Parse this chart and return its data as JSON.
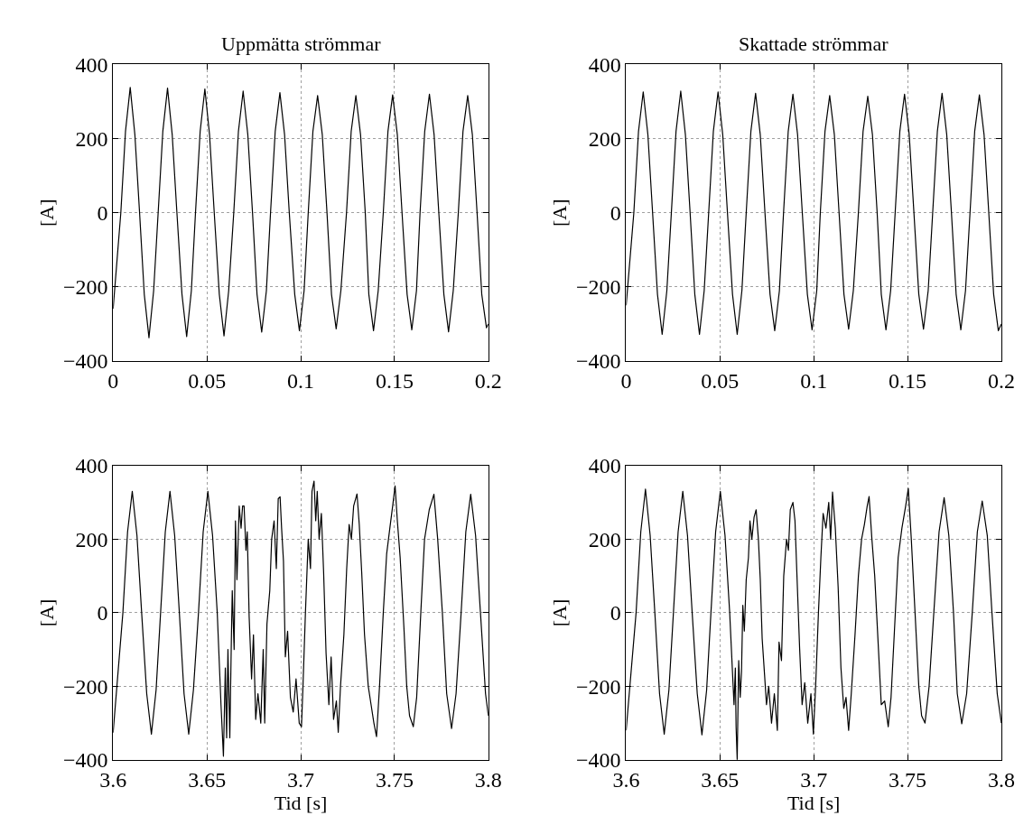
{
  "chart_data": [
    {
      "type": "line",
      "title": "Uppmätta strömmar",
      "ylabel": "[A]",
      "xlim": [
        0,
        0.2
      ],
      "xticks": [
        0,
        0.05,
        0.1,
        0.15,
        0.2
      ],
      "ylim": [
        -400,
        400
      ],
      "yticks": [
        -400,
        -200,
        0,
        200,
        400
      ],
      "grid": true,
      "line_style": "solid",
      "series": [
        {
          "color": "#000000",
          "x": [
            0,
            0.0041,
            0.0066,
            0.0091,
            0.0116,
            0.0141,
            0.0166,
            0.0191,
            0.0216,
            0.024,
            0.0265,
            0.029,
            0.0315,
            0.034,
            0.0367,
            0.0392,
            0.0417,
            0.0439,
            0.0464,
            0.0489,
            0.0514,
            0.0539,
            0.0566,
            0.0591,
            0.0616,
            0.0643,
            0.0668,
            0.0693,
            0.0718,
            0.0743,
            0.0767,
            0.0792,
            0.0817,
            0.0839,
            0.0864,
            0.0889,
            0.0914,
            0.0939,
            0.0968,
            0.0993,
            0.1018,
            0.104,
            0.1065,
            0.109,
            0.1115,
            0.114,
            0.1164,
            0.1189,
            0.1214,
            0.1244,
            0.1269,
            0.1294,
            0.1319,
            0.1344,
            0.1363,
            0.1388,
            0.1413,
            0.144,
            0.1465,
            0.149,
            0.1515,
            0.154,
            0.1567,
            0.1592,
            0.1617,
            0.1636,
            0.1661,
            0.1686,
            0.1711,
            0.1736,
            0.1763,
            0.1788,
            0.1813,
            0.184,
            0.1865,
            0.189,
            0.1915,
            0.194,
            0.1965,
            0.199,
            0.2
          ],
          "values": [
            -259,
            0,
            220,
            338,
            210,
            0,
            -220,
            -337,
            -210,
            0,
            220,
            336,
            210,
            0,
            -220,
            -334,
            -210,
            0,
            220,
            334,
            210,
            0,
            -220,
            -332,
            -210,
            0,
            220,
            328,
            210,
            0,
            -220,
            -322,
            -210,
            0,
            220,
            324,
            210,
            0,
            -220,
            -318,
            -210,
            0,
            220,
            316,
            210,
            0,
            -220,
            -313,
            -210,
            0,
            220,
            316,
            210,
            0,
            -220,
            -318,
            -210,
            0,
            220,
            318,
            210,
            0,
            -220,
            -316,
            -210,
            0,
            220,
            320,
            210,
            0,
            -220,
            -321,
            -210,
            0,
            220,
            316,
            210,
            0,
            -220,
            -310,
            -300
          ]
        }
      ]
    },
    {
      "type": "line",
      "title": "Skattade strömmar",
      "ylabel": "[A]",
      "xlim": [
        0,
        0.2
      ],
      "xticks": [
        0,
        0.05,
        0.1,
        0.15,
        0.2
      ],
      "ylim": [
        -400,
        400
      ],
      "yticks": [
        -400,
        -200,
        0,
        200,
        400
      ],
      "grid": true,
      "line_style": "solid",
      "series": [
        {
          "color": "#000000",
          "x": [
            0,
            0.0041,
            0.0066,
            0.0091,
            0.0116,
            0.0141,
            0.0167,
            0.0192,
            0.0217,
            0.0241,
            0.0266,
            0.0291,
            0.0316,
            0.0341,
            0.0366,
            0.0391,
            0.0416,
            0.044,
            0.0465,
            0.049,
            0.0515,
            0.054,
            0.0567,
            0.0592,
            0.0617,
            0.064,
            0.0665,
            0.069,
            0.0715,
            0.074,
            0.0767,
            0.0792,
            0.0817,
            0.0839,
            0.0864,
            0.0889,
            0.0914,
            0.0939,
            0.0966,
            0.0991,
            0.1016,
            0.1035,
            0.106,
            0.1085,
            0.111,
            0.1135,
            0.1161,
            0.1186,
            0.1211,
            0.1238,
            0.1263,
            0.1288,
            0.1313,
            0.1338,
            0.136,
            0.1385,
            0.141,
            0.1434,
            0.1459,
            0.1484,
            0.1509,
            0.1534,
            0.156,
            0.1585,
            0.161,
            0.1634,
            0.1659,
            0.1684,
            0.1709,
            0.1734,
            0.1759,
            0.1784,
            0.1809,
            0.1833,
            0.1858,
            0.1883,
            0.1908,
            0.1933,
            0.1959,
            0.1984,
            0.2
          ],
          "values": [
            -250,
            0,
            220,
            326,
            210,
            0,
            -220,
            -328,
            -210,
            0,
            220,
            328,
            210,
            0,
            -220,
            -328,
            -210,
            0,
            220,
            326,
            210,
            0,
            -220,
            -328,
            -210,
            0,
            220,
            322,
            210,
            0,
            -220,
            -318,
            -210,
            0,
            220,
            320,
            210,
            0,
            -220,
            -316,
            -210,
            0,
            220,
            316,
            210,
            0,
            -220,
            -314,
            -210,
            0,
            220,
            314,
            210,
            0,
            -220,
            -316,
            -210,
            0,
            220,
            320,
            210,
            0,
            -220,
            -314,
            -210,
            0,
            220,
            322,
            210,
            0,
            -220,
            -316,
            -210,
            0,
            220,
            318,
            210,
            0,
            -220,
            -318,
            -300
          ]
        }
      ]
    },
    {
      "type": "line",
      "xlabel": "Tid [s]",
      "ylabel": "[A]",
      "xlim": [
        3.6,
        3.8
      ],
      "xticks": [
        3.6,
        3.65,
        3.7,
        3.75,
        3.8
      ],
      "ylim": [
        -400,
        400
      ],
      "yticks": [
        -400,
        -200,
        0,
        200,
        400
      ],
      "grid": true,
      "line_style": "solid",
      "series": [
        {
          "color": "#000000",
          "x": [
            3.6,
            3.6052,
            3.6077,
            3.6102,
            3.6127,
            3.6152,
            3.6179,
            3.6204,
            3.6229,
            3.6253,
            3.6278,
            3.6303,
            3.6328,
            3.6353,
            3.6378,
            3.6403,
            3.6428,
            3.6455,
            3.648,
            3.6505,
            3.653,
            3.6555,
            3.6575,
            3.6588,
            3.6598,
            3.6605,
            3.6612,
            3.6622,
            3.663,
            3.6635,
            3.6645,
            3.6652,
            3.666,
            3.6672,
            3.6682,
            3.669,
            3.6698,
            3.6708,
            3.6715,
            3.6725,
            3.6738,
            3.6748,
            3.676,
            3.6772,
            3.6787,
            3.68,
            3.6808,
            3.682,
            3.6835,
            3.6845,
            3.6858,
            3.687,
            3.688,
            3.689,
            3.6898,
            3.6908,
            3.6918,
            3.693,
            3.6945,
            3.696,
            3.6975,
            3.6992,
            3.7004,
            3.7012,
            3.7025,
            3.704,
            3.7052,
            3.706,
            3.7071,
            3.708,
            3.7088,
            3.7098,
            3.711,
            3.7122,
            3.7135,
            3.715,
            3.7162,
            3.7175,
            3.719,
            3.72,
            3.7212,
            3.723,
            3.7245,
            3.7258,
            3.727,
            3.7282,
            3.73,
            3.7312,
            3.7325,
            3.734,
            3.736,
            3.7375,
            3.739,
            3.7404,
            3.742,
            3.744,
            3.7458,
            3.7475,
            3.749,
            3.7503,
            3.7515,
            3.753,
            3.755,
            3.7565,
            3.758,
            3.76,
            3.7618,
            3.764,
            3.766,
            3.7685,
            3.771,
            3.773,
            3.7755,
            3.7778,
            3.7804,
            3.7828,
            3.7855,
            3.788,
            3.7906,
            3.7932,
            3.7958,
            3.7985,
            3.8
          ],
          "values": [
            -326,
            0,
            220,
            330,
            210,
            0,
            -220,
            -330,
            -210,
            0,
            220,
            330,
            210,
            0,
            -220,
            -330,
            -210,
            0,
            220,
            330,
            210,
            0,
            -250,
            -390,
            -150,
            -340,
            -100,
            -340,
            -80,
            60,
            -100,
            250,
            90,
            290,
            230,
            290,
            290,
            170,
            220,
            -10,
            -180,
            -60,
            -290,
            -220,
            -300,
            -100,
            -300,
            -30,
            60,
            200,
            250,
            120,
            310,
            315,
            230,
            140,
            -120,
            -50,
            -230,
            -270,
            -180,
            -300,
            -310,
            -200,
            0,
            200,
            120,
            330,
            358,
            250,
            330,
            200,
            270,
            110,
            -110,
            -250,
            -120,
            -290,
            -240,
            -325,
            -200,
            -60,
            120,
            240,
            200,
            290,
            323,
            240,
            110,
            -60,
            -200,
            -250,
            -300,
            -337,
            -200,
            0,
            160,
            230,
            290,
            345,
            250,
            150,
            -40,
            -200,
            -280,
            -310,
            -230,
            0,
            200,
            280,
            322,
            200,
            0,
            -220,
            -315,
            -220,
            0,
            220,
            322,
            210,
            0,
            -220,
            -280
          ]
        }
      ]
    },
    {
      "type": "line",
      "xlabel": "Tid [s]",
      "ylabel": "[A]",
      "xlim": [
        3.6,
        3.8
      ],
      "xticks": [
        3.6,
        3.65,
        3.7,
        3.75,
        3.8
      ],
      "ylim": [
        -400,
        400
      ],
      "yticks": [
        -400,
        -200,
        0,
        200,
        400
      ],
      "grid": true,
      "line_style": "solid",
      "series": [
        {
          "color": "#000000",
          "x": [
            3.6,
            3.6053,
            3.6078,
            3.6103,
            3.6128,
            3.6153,
            3.6178,
            3.6203,
            3.6228,
            3.6252,
            3.6277,
            3.6302,
            3.6327,
            3.6352,
            3.6379,
            3.6404,
            3.6429,
            3.6452,
            3.6477,
            3.6502,
            3.6527,
            3.6552,
            3.6575,
            3.6582,
            3.6586,
            3.6592,
            3.66,
            3.6608,
            3.6615,
            3.6622,
            3.663,
            3.664,
            3.6652,
            3.666,
            3.667,
            3.6682,
            3.6693,
            3.6705,
            3.6715,
            3.6725,
            3.6738,
            3.6748,
            3.676,
            3.6775,
            3.679,
            3.6806,
            3.6815,
            3.6828,
            3.684,
            3.6855,
            3.6865,
            3.6875,
            3.6889,
            3.69,
            3.6912,
            3.6925,
            3.6938,
            3.6952,
            3.6968,
            3.6985,
            3.6998,
            3.701,
            3.7025,
            3.7038,
            3.705,
            3.7065,
            3.708,
            3.709,
            3.71,
            3.7115,
            3.713,
            3.7145,
            3.716,
            3.7172,
            3.7186,
            3.72,
            3.722,
            3.7238,
            3.7255,
            3.727,
            3.7285,
            3.7295,
            3.731,
            3.7325,
            3.7345,
            3.736,
            3.7378,
            3.7397,
            3.7412,
            3.743,
            3.745,
            3.747,
            3.749,
            3.7504,
            3.752,
            3.754,
            3.756,
            3.7575,
            3.7593,
            3.7615,
            3.764,
            3.7668,
            3.7695,
            3.772,
            3.7745,
            3.7765,
            3.7789,
            3.7815,
            3.7845,
            3.7872,
            3.7898,
            3.7925,
            3.795,
            3.7978,
            3.8
          ],
          "values": [
            -320,
            0,
            220,
            336,
            210,
            0,
            -220,
            -330,
            -210,
            0,
            220,
            330,
            210,
            0,
            -220,
            -332,
            -210,
            0,
            220,
            330,
            210,
            0,
            -250,
            -150,
            -310,
            -400,
            -130,
            -230,
            -160,
            20,
            -50,
            90,
            150,
            250,
            200,
            260,
            280,
            200,
            90,
            -70,
            -170,
            -250,
            -200,
            -300,
            -220,
            -320,
            -80,
            -130,
            100,
            200,
            170,
            280,
            300,
            250,
            80,
            -100,
            -250,
            -190,
            -300,
            -220,
            -330,
            -200,
            0,
            150,
            270,
            230,
            300,
            200,
            328,
            230,
            70,
            -150,
            -260,
            -230,
            -320,
            -220,
            -60,
            100,
            200,
            240,
            290,
            316,
            200,
            100,
            -100,
            -250,
            -240,
            -310,
            -230,
            -50,
            150,
            230,
            290,
            338,
            200,
            0,
            -200,
            -280,
            -300,
            -200,
            0,
            220,
            313,
            210,
            0,
            -220,
            -302,
            -220,
            0,
            220,
            304,
            210,
            0,
            -220,
            -300
          ]
        }
      ]
    }
  ]
}
